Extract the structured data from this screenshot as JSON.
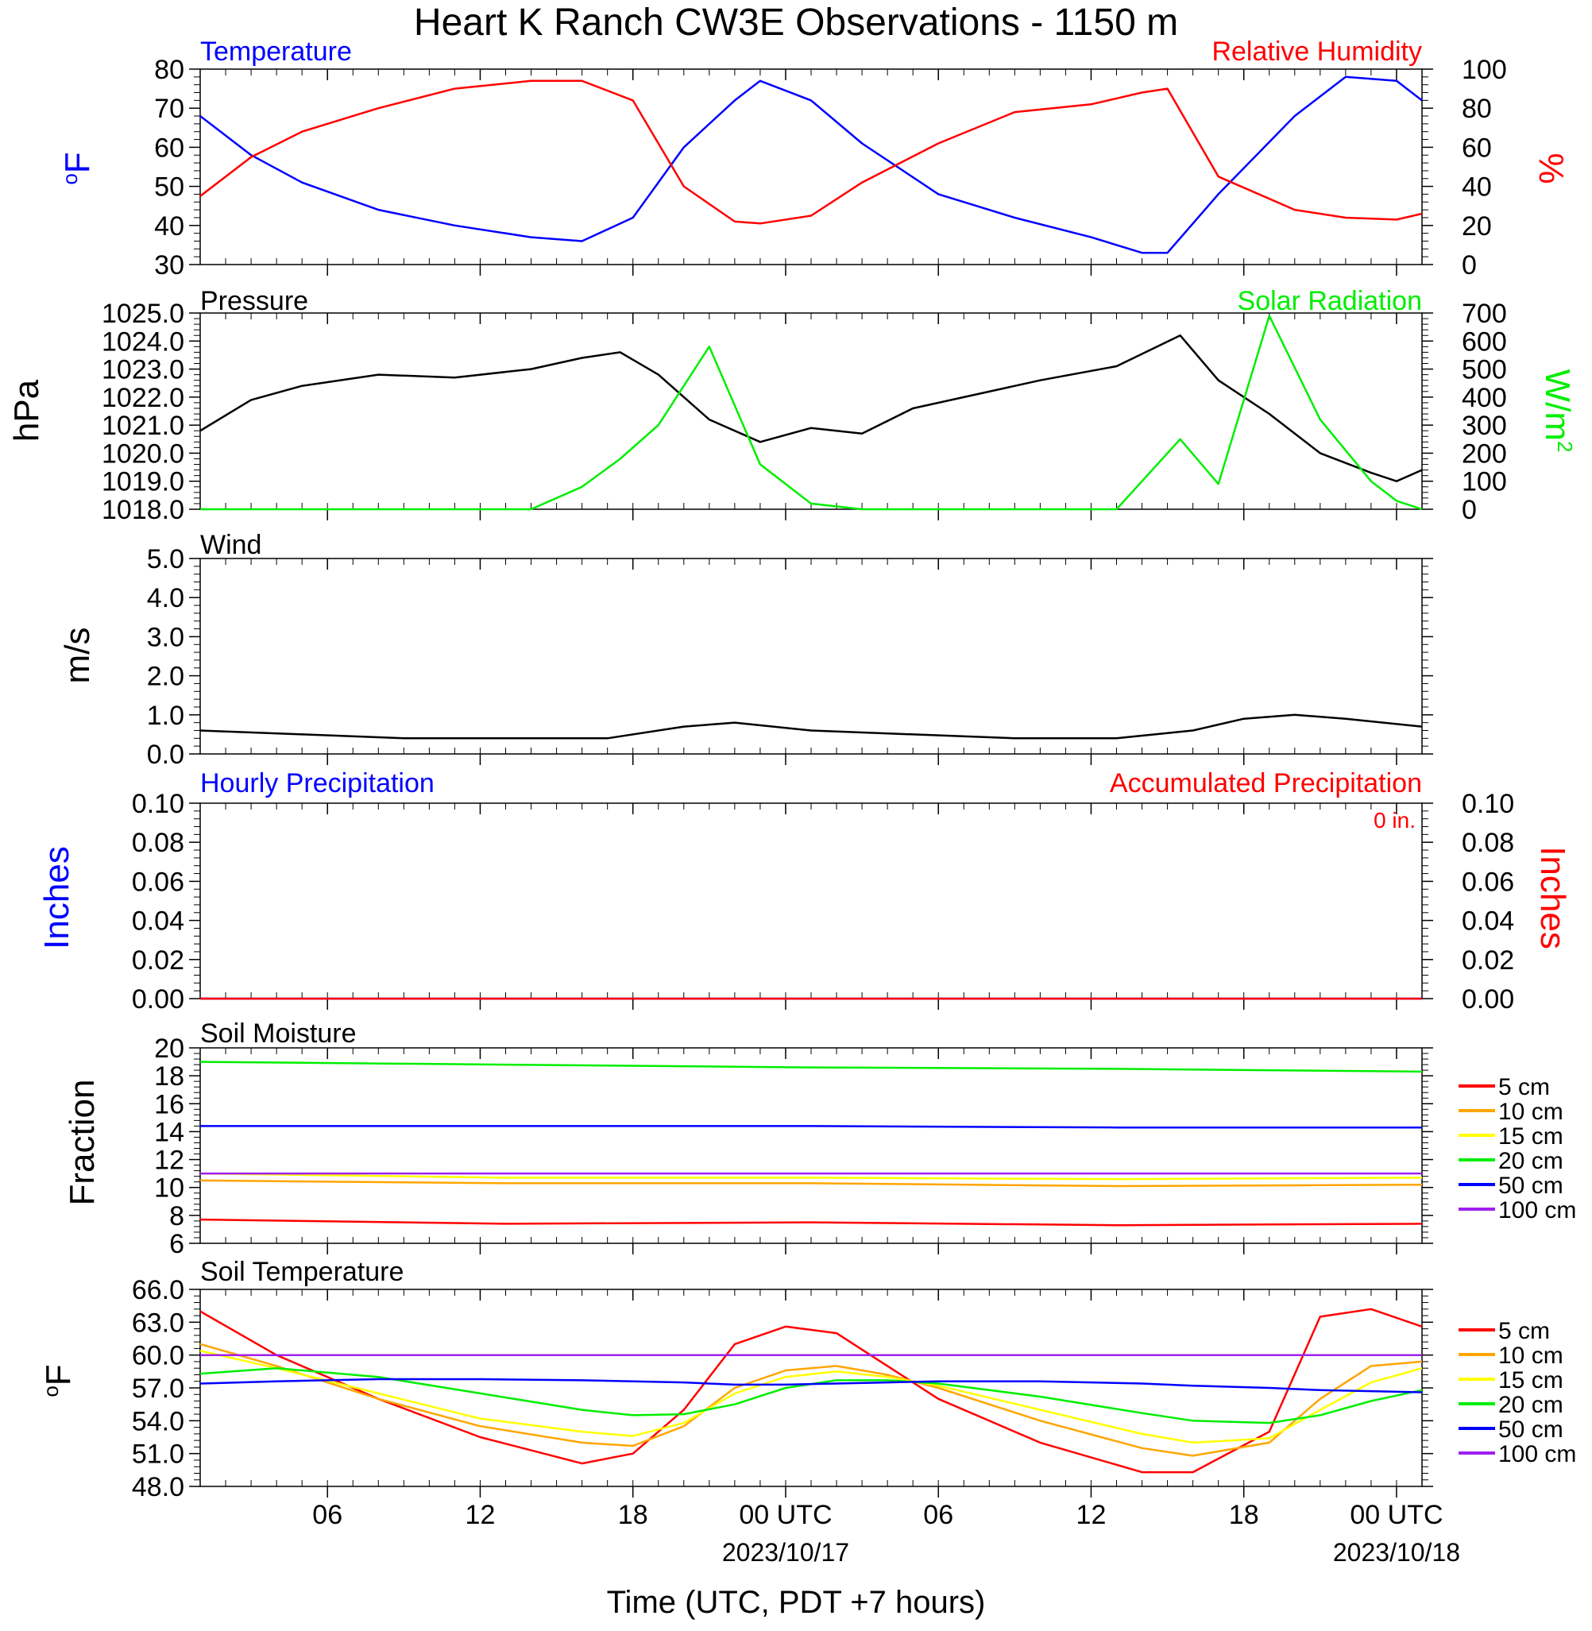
{
  "title": "Heart K Ranch CW3E Observations - 1150 m",
  "xlabel": "Time (UTC, PDT +7 hours)",
  "x_ticks": [
    {
      "hour": 6,
      "label": "06",
      "date": ""
    },
    {
      "hour": 12,
      "label": "12",
      "date": ""
    },
    {
      "hour": 18,
      "label": "18",
      "date": ""
    },
    {
      "hour": 24,
      "label": "00 UTC",
      "date": "2023/10/17"
    },
    {
      "hour": 30,
      "label": "06",
      "date": ""
    },
    {
      "hour": 36,
      "label": "12",
      "date": ""
    },
    {
      "hour": 42,
      "label": "18",
      "date": ""
    },
    {
      "hour": 48,
      "label": "00 UTC",
      "date": "2023/10/18"
    }
  ],
  "x_range_hours": [
    1,
    49
  ],
  "colors": {
    "blue": "#0000ff",
    "red": "#ff0000",
    "green": "#00ee00",
    "black": "#000000",
    "orange": "#ffa500",
    "yellow": "#ffff00",
    "purple": "#a020f0"
  },
  "panels": {
    "temp_rh": {
      "left_title": "Temperature",
      "right_title": "Relative Humidity",
      "left_ylabel": "oF",
      "right_ylabel": "%"
    },
    "pressure_solar": {
      "left_title": "Pressure",
      "right_title": "Solar Radiation",
      "left_ylabel": "hPa",
      "right_ylabel": "W/m2"
    },
    "wind": {
      "left_title": "Wind",
      "left_ylabel": "m/s"
    },
    "precip": {
      "left_title": "Hourly Precipitation",
      "right_title": "Accumulated Precipitation",
      "accum_text": "0 in.",
      "left_ylabel": "Inches",
      "right_ylabel": "Inches"
    },
    "soil_moisture": {
      "left_title": "Soil Moisture",
      "left_ylabel": "Fraction"
    },
    "soil_temp": {
      "left_title": "Soil Temperature",
      "left_ylabel": "oF"
    }
  },
  "legend_depths": [
    "5 cm",
    "10 cm",
    "15 cm",
    "20 cm",
    "50 cm",
    "100 cm"
  ],
  "chart_data": [
    {
      "type": "line",
      "title": "Temperature",
      "ylabel": "oF",
      "ylim": [
        30,
        80
      ],
      "yticks": [
        30,
        40,
        50,
        60,
        70,
        80
      ],
      "right_axis": {
        "label": "%",
        "ylim": [
          0,
          100
        ],
        "ticks": [
          0,
          20,
          40,
          60,
          80,
          100
        ]
      },
      "x": [
        1,
        3,
        5,
        8,
        11,
        14,
        16,
        18,
        20,
        22,
        23,
        25,
        27,
        30,
        33,
        36,
        38,
        39,
        41,
        44,
        46,
        48,
        49
      ],
      "series": [
        {
          "name": "Temperature",
          "axis": "left",
          "color": "#0000ff",
          "values": [
            68,
            58,
            51,
            44,
            40,
            37,
            36,
            42,
            60,
            72,
            77,
            72,
            61,
            48,
            42,
            37,
            33,
            33,
            48,
            68,
            78,
            77,
            72
          ]
        },
        {
          "name": "Relative Humidity",
          "axis": "right",
          "color": "#ff0000",
          "values": [
            35,
            55,
            68,
            80,
            90,
            94,
            94,
            84,
            40,
            22,
            21,
            25,
            42,
            62,
            78,
            82,
            88,
            90,
            45,
            28,
            24,
            23,
            26
          ]
        }
      ]
    },
    {
      "type": "line",
      "title": "Pressure",
      "ylabel": "hPa",
      "ylim": [
        1018,
        1025
      ],
      "yticks": [
        1018,
        1019,
        1020,
        1021,
        1022,
        1023,
        1024,
        1025
      ],
      "right_axis": {
        "label": "W/m2",
        "ylim": [
          0,
          700
        ],
        "ticks": [
          0,
          100,
          200,
          300,
          400,
          500,
          600,
          700
        ]
      },
      "x": [
        1,
        3,
        5,
        8,
        11,
        14,
        16,
        17.5,
        19,
        21,
        23,
        25,
        27,
        29,
        31,
        34,
        37,
        39.5,
        41,
        43,
        45,
        47,
        48,
        49
      ],
      "series": [
        {
          "name": "Pressure",
          "axis": "left",
          "color": "#000000",
          "values": [
            1020.8,
            1021.9,
            1022.4,
            1022.8,
            1022.7,
            1023.0,
            1023.4,
            1023.6,
            1022.8,
            1021.2,
            1020.4,
            1020.9,
            1020.7,
            1021.6,
            1022.0,
            1022.6,
            1023.1,
            1024.2,
            1022.6,
            1021.4,
            1020.0,
            1019.3,
            1019.0,
            1019.4
          ]
        },
        {
          "name": "Solar Radiation",
          "axis": "right",
          "color": "#00ee00",
          "values": [
            0,
            0,
            0,
            0,
            0,
            0,
            80,
            180,
            300,
            580,
            160,
            20,
            0,
            0,
            0,
            0,
            0,
            250,
            90,
            690,
            320,
            100,
            30,
            0
          ]
        }
      ]
    },
    {
      "type": "line",
      "title": "Wind",
      "ylabel": "m/s",
      "ylim": [
        0,
        5
      ],
      "yticks": [
        0,
        1,
        2,
        3,
        4,
        5
      ],
      "x": [
        1,
        5,
        9,
        13,
        17,
        20,
        22,
        25,
        29,
        33,
        37,
        40,
        42,
        44,
        46,
        49
      ],
      "series": [
        {
          "name": "Wind",
          "color": "#000000",
          "values": [
            0.6,
            0.5,
            0.4,
            0.4,
            0.4,
            0.7,
            0.8,
            0.6,
            0.5,
            0.4,
            0.4,
            0.6,
            0.9,
            1.0,
            0.9,
            0.7
          ]
        }
      ]
    },
    {
      "type": "line",
      "title": "Hourly Precipitation",
      "ylabel": "Inches",
      "ylim": [
        0,
        0.1
      ],
      "yticks": [
        0,
        0.02,
        0.04,
        0.06,
        0.08,
        0.1
      ],
      "right_axis": {
        "label": "Inches",
        "ylim": [
          0,
          0.1
        ],
        "ticks": [
          0,
          0.02,
          0.04,
          0.06,
          0.08,
          0.1
        ]
      },
      "x": [
        1,
        49
      ],
      "series": [
        {
          "name": "Hourly Precipitation",
          "axis": "left",
          "color": "#0000ff",
          "values": [
            0,
            0
          ]
        },
        {
          "name": "Accumulated Precipitation",
          "axis": "right",
          "color": "#ff0000",
          "values": [
            0,
            0
          ]
        }
      ]
    },
    {
      "type": "line",
      "title": "Soil Moisture",
      "ylabel": "Fraction",
      "ylim": [
        6,
        20
      ],
      "yticks": [
        6,
        8,
        10,
        12,
        14,
        16,
        18,
        20
      ],
      "x": [
        1,
        13,
        25,
        37,
        49
      ],
      "series": [
        {
          "name": "5 cm",
          "color": "#ff0000",
          "values": [
            7.7,
            7.4,
            7.5,
            7.3,
            7.4
          ]
        },
        {
          "name": "10 cm",
          "color": "#ffa500",
          "values": [
            10.5,
            10.3,
            10.3,
            10.1,
            10.2
          ]
        },
        {
          "name": "15 cm",
          "color": "#ffff00",
          "values": [
            11.0,
            10.7,
            10.7,
            10.6,
            10.7
          ]
        },
        {
          "name": "20 cm",
          "color": "#00ee00",
          "values": [
            19.0,
            18.8,
            18.6,
            18.5,
            18.3
          ]
        },
        {
          "name": "50 cm",
          "color": "#0000ff",
          "values": [
            14.4,
            14.4,
            14.4,
            14.3,
            14.3
          ]
        },
        {
          "name": "100 cm",
          "color": "#a020f0",
          "values": [
            11.0,
            11.0,
            11.0,
            11.0,
            11.0
          ]
        }
      ]
    },
    {
      "type": "line",
      "title": "Soil Temperature",
      "ylabel": "oF",
      "ylim": [
        48,
        66
      ],
      "yticks": [
        48,
        51,
        54,
        57,
        60,
        63,
        66
      ],
      "x": [
        1,
        4,
        8,
        12,
        16,
        18,
        20,
        22,
        24,
        26,
        28,
        30,
        34,
        38,
        40,
        43,
        45,
        47,
        49
      ],
      "series": [
        {
          "name": "5 cm",
          "color": "#ff0000",
          "values": [
            64,
            60,
            56,
            52.5,
            50.1,
            51,
            55,
            61,
            62.6,
            62,
            59,
            56,
            52,
            49.3,
            49.3,
            53,
            63.5,
            64.2,
            62.6
          ]
        },
        {
          "name": "10 cm",
          "color": "#ffa500",
          "values": [
            61,
            59,
            56,
            53.5,
            52,
            51.7,
            53.5,
            57,
            58.6,
            59,
            58.2,
            57,
            54,
            51.5,
            50.8,
            52,
            56,
            59,
            59.4
          ]
        },
        {
          "name": "15 cm",
          "color": "#ffff00",
          "values": [
            60.4,
            58.8,
            56.5,
            54.2,
            53,
            52.6,
            53.8,
            56.5,
            58,
            58.5,
            58,
            57.2,
            55,
            52.8,
            52,
            52.4,
            55,
            57.5,
            58.8
          ]
        },
        {
          "name": "20 cm",
          "color": "#00ee00",
          "values": [
            58.3,
            58.8,
            58,
            56.5,
            55,
            54.5,
            54.6,
            55.5,
            57,
            57.7,
            57.7,
            57.4,
            56.2,
            54.7,
            54,
            53.8,
            54.5,
            55.8,
            56.8
          ]
        },
        {
          "name": "50 cm",
          "color": "#0000ff",
          "values": [
            57.4,
            57.6,
            57.8,
            57.8,
            57.7,
            57.6,
            57.5,
            57.3,
            57.3,
            57.4,
            57.5,
            57.6,
            57.6,
            57.4,
            57.2,
            57.0,
            56.8,
            56.7,
            56.6
          ]
        },
        {
          "name": "100 cm",
          "color": "#a020f0",
          "values": [
            60,
            60,
            60,
            60,
            60,
            60,
            60,
            60,
            60,
            60,
            60,
            60,
            60,
            60,
            60,
            60,
            60,
            60,
            60
          ]
        }
      ]
    }
  ]
}
